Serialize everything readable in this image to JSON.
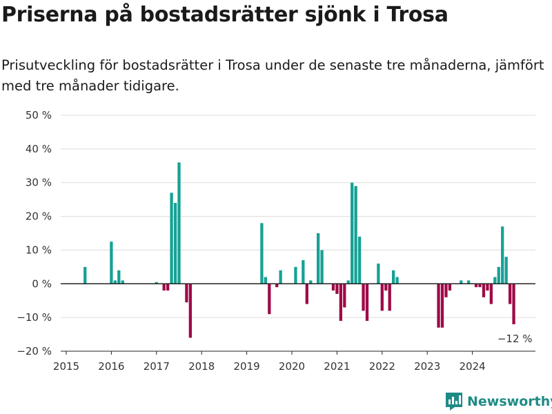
{
  "colors": {
    "positive": "#17a195",
    "negative": "#9e0a47",
    "grid": "#dcdcdc",
    "zero_line": "#222222",
    "brand": "#1e8c85"
  },
  "brand": {
    "name": "Newsworthy"
  },
  "chart_data": {
    "type": "bar",
    "title": "Priserna på bostadsrätter sjönk i Trosa",
    "subtitle": "Prisutveckling för bostadsrätter i Trosa under de senaste tre månaderna, jämfört med tre månader tidigare.",
    "xlabel": "",
    "ylabel": "",
    "ylim": [
      -20,
      50
    ],
    "y_ticks": [
      {
        "value": 50,
        "label": "50 %"
      },
      {
        "value": 40,
        "label": "40 %"
      },
      {
        "value": 30,
        "label": "30 %"
      },
      {
        "value": 20,
        "label": "20 %"
      },
      {
        "value": 10,
        "label": "10 %"
      },
      {
        "value": 0,
        "label": "0 %"
      },
      {
        "value": -10,
        "label": "−10 %"
      },
      {
        "value": -20,
        "label": "−20 %"
      }
    ],
    "x_ticks": [
      "2015",
      "2016",
      "2017",
      "2018",
      "2019",
      "2020",
      "2021",
      "2022",
      "2023",
      "2024"
    ],
    "grid": true,
    "annotation": {
      "label": "−12 %",
      "month": "2024-12"
    },
    "monthly_values": [
      {
        "month": "2015-06",
        "value": 5
      },
      {
        "month": "2016-01",
        "value": 12.5
      },
      {
        "month": "2016-02",
        "value": 1
      },
      {
        "month": "2016-03",
        "value": 4
      },
      {
        "month": "2016-04",
        "value": 1
      },
      {
        "month": "2017-01",
        "value": 0.5
      },
      {
        "month": "2017-03",
        "value": -2
      },
      {
        "month": "2017-04",
        "value": -2
      },
      {
        "month": "2017-05",
        "value": 27
      },
      {
        "month": "2017-06",
        "value": 24
      },
      {
        "month": "2017-07",
        "value": 36
      },
      {
        "month": "2017-09",
        "value": -5.5
      },
      {
        "month": "2017-10",
        "value": -16
      },
      {
        "month": "2019-05",
        "value": 18
      },
      {
        "month": "2019-06",
        "value": 2
      },
      {
        "month": "2019-07",
        "value": -9
      },
      {
        "month": "2019-09",
        "value": -1
      },
      {
        "month": "2019-10",
        "value": 4
      },
      {
        "month": "2020-02",
        "value": 5
      },
      {
        "month": "2020-04",
        "value": 7
      },
      {
        "month": "2020-05",
        "value": -6
      },
      {
        "month": "2020-06",
        "value": 1
      },
      {
        "month": "2020-08",
        "value": 15
      },
      {
        "month": "2020-09",
        "value": 10
      },
      {
        "month": "2020-12",
        "value": -2
      },
      {
        "month": "2021-01",
        "value": -3
      },
      {
        "month": "2021-02",
        "value": -11
      },
      {
        "month": "2021-03",
        "value": -7
      },
      {
        "month": "2021-04",
        "value": 1
      },
      {
        "month": "2021-05",
        "value": 30
      },
      {
        "month": "2021-06",
        "value": 29
      },
      {
        "month": "2021-07",
        "value": 14
      },
      {
        "month": "2021-08",
        "value": -8
      },
      {
        "month": "2021-09",
        "value": -11
      },
      {
        "month": "2021-12",
        "value": 6
      },
      {
        "month": "2022-01",
        "value": -8
      },
      {
        "month": "2022-02",
        "value": -2
      },
      {
        "month": "2022-03",
        "value": -8
      },
      {
        "month": "2022-04",
        "value": 4
      },
      {
        "month": "2022-05",
        "value": 2
      },
      {
        "month": "2023-04",
        "value": -13
      },
      {
        "month": "2023-05",
        "value": -13
      },
      {
        "month": "2023-06",
        "value": -4
      },
      {
        "month": "2023-07",
        "value": -2
      },
      {
        "month": "2023-10",
        "value": 1
      },
      {
        "month": "2023-12",
        "value": 1
      },
      {
        "month": "2024-02",
        "value": -1
      },
      {
        "month": "2024-03",
        "value": -1
      },
      {
        "month": "2024-04",
        "value": -4
      },
      {
        "month": "2024-05",
        "value": -2
      },
      {
        "month": "2024-06",
        "value": -6
      },
      {
        "month": "2024-07",
        "value": 2
      },
      {
        "month": "2024-08",
        "value": 5
      },
      {
        "month": "2024-09",
        "value": 17
      },
      {
        "month": "2024-10",
        "value": 8
      },
      {
        "month": "2024-11",
        "value": -6
      },
      {
        "month": "2024-12",
        "value": -12
      }
    ]
  }
}
